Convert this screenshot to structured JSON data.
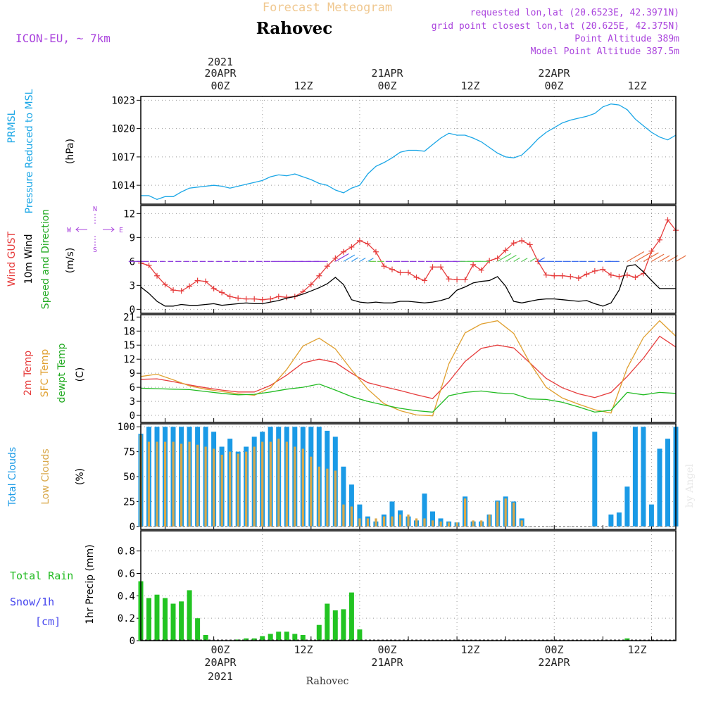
{
  "header": {
    "subtitle": "Forecast Meteogram",
    "location": "Rahovec",
    "model": "ICON-EU, ~ 7km",
    "requested": "requested lon,lat (20.6523E, 42.3971N)",
    "gridpoint": "grid point closest lon,lat (20.625E, 42.375N)",
    "point_alt": "Point Altitude 389m",
    "model_alt": "Model Point Altitude 387.5m",
    "footer_location": "Rahovec",
    "watermark": "by Angel"
  },
  "time_axis": {
    "top_year": "2021",
    "top_dates": [
      "20APR",
      "21APR",
      "22APR"
    ],
    "hour_labels": [
      "00Z",
      "12Z",
      "00Z",
      "12Z",
      "00Z",
      "12Z"
    ],
    "bottom_year": "2021",
    "bottom_dates": [
      "20APR",
      "21APR",
      "22APR"
    ]
  },
  "colors": {
    "pressure": "#1aa6e6",
    "gust": "#e63c3c",
    "wind": "#000000",
    "temp2m": "#e63c3c",
    "sfc": "#e0a030",
    "dewpt": "#22bb22",
    "total_clouds": "#1a9ae6",
    "low_clouds": "#d9a84a",
    "rain": "#22c422",
    "snow": "#4444ee",
    "purple": "#aa44dd"
  },
  "chart_data": [
    {
      "type": "line",
      "panel": "pressure",
      "ylabel_lines": [
        "PRMSL",
        "Pressure Reduced to MSL"
      ],
      "unit": "(hPa)",
      "yticks": [
        1014,
        1017,
        1020,
        1023
      ],
      "ylim": [
        1012,
        1023.4
      ],
      "xlim_hours": [
        -15,
        51
      ],
      "series": [
        {
          "name": "PRMSL",
          "x": [
            -15,
            -14,
            -13,
            -12,
            -11,
            -10,
            -9,
            -8,
            -7,
            -6,
            -5,
            -4,
            -3,
            -2,
            -1,
            0,
            1,
            2,
            3,
            4,
            5,
            6,
            7,
            8,
            9,
            10,
            11,
            12,
            13,
            14,
            15,
            16,
            17,
            18,
            19,
            20,
            21,
            22,
            23,
            24,
            25,
            26,
            27,
            28,
            29,
            30,
            31,
            32,
            33,
            34,
            35,
            36,
            37,
            38,
            39,
            40,
            41,
            42,
            43,
            44,
            45,
            46,
            47,
            48,
            49,
            50,
            51
          ],
          "y": [
            1012.9,
            1012.9,
            1012.5,
            1012.8,
            1012.8,
            1013.3,
            1013.7,
            1013.8,
            1013.9,
            1014.0,
            1013.9,
            1013.7,
            1013.9,
            1014.1,
            1014.3,
            1014.5,
            1014.9,
            1015.1,
            1015.0,
            1015.2,
            1014.9,
            1014.6,
            1014.2,
            1014.0,
            1013.5,
            1013.2,
            1013.7,
            1014.0,
            1015.2,
            1016.0,
            1016.4,
            1016.9,
            1017.5,
            1017.7,
            1017.7,
            1017.6,
            1018.3,
            1019.0,
            1019.5,
            1019.3,
            1019.3,
            1019.0,
            1018.6,
            1018.0,
            1017.4,
            1017.0,
            1016.9,
            1017.2,
            1018.0,
            1018.9,
            1019.6,
            1020.1,
            1020.6,
            1020.9,
            1021.1,
            1021.3,
            1021.6,
            1022.3,
            1022.6,
            1022.5,
            1022.0,
            1021.0,
            1020.3,
            1019.6,
            1019.1,
            1018.8,
            1019.3
          ]
        }
      ]
    },
    {
      "type": "line",
      "panel": "wind",
      "ylabel_lines": [
        "Wind GUST",
        "10m Wind",
        "Speed and Direction"
      ],
      "unit": "(m/s)",
      "compass": {
        "n": "N",
        "s": "S",
        "e": "E",
        "w": "W"
      },
      "yticks": [
        0,
        3,
        6,
        9,
        12
      ],
      "ylim": [
        -0.5,
        13
      ],
      "series": [
        {
          "name": "Wind GUST",
          "x": [
            -15,
            -14,
            -13,
            -12,
            -11,
            -10,
            -9,
            -8,
            -7,
            -6,
            -5,
            -4,
            -3,
            -2,
            -1,
            0,
            1,
            2,
            3,
            4,
            5,
            6,
            7,
            8,
            9,
            10,
            11,
            12,
            13,
            14,
            15,
            16,
            17,
            18,
            19,
            20,
            21,
            22,
            23,
            24,
            25,
            26,
            27,
            28,
            29,
            30,
            31,
            32,
            33,
            34,
            35,
            36,
            37,
            38,
            39,
            40,
            41,
            42,
            43,
            44,
            45,
            46,
            47,
            48,
            49,
            50,
            51
          ],
          "y": [
            5.8,
            5.5,
            4.2,
            3.1,
            2.4,
            2.3,
            2.9,
            3.6,
            3.5,
            2.6,
            2.1,
            1.6,
            1.4,
            1.3,
            1.3,
            1.2,
            1.3,
            1.6,
            1.5,
            1.6,
            2.2,
            3.1,
            4.2,
            5.4,
            6.4,
            7.2,
            7.8,
            8.6,
            8.2,
            7.2,
            5.4,
            5.0,
            4.6,
            4.6,
            4.0,
            3.6,
            5.3,
            5.3,
            3.8,
            3.7,
            3.7,
            5.6,
            4.9,
            6.1,
            6.4,
            7.4,
            8.3,
            8.6,
            8.1,
            6.0,
            4.3,
            4.2,
            4.2,
            4.1,
            3.9,
            4.4,
            4.8,
            5.0,
            4.3,
            4.1,
            4.3,
            4.0,
            4.5,
            7.3,
            8.7,
            11.2,
            9.9
          ]
        },
        {
          "name": "10m Wind",
          "x": [
            -15,
            -14,
            -13,
            -12,
            -11,
            -10,
            -9,
            -8,
            -7,
            -6,
            -5,
            -4,
            -3,
            -2,
            -1,
            0,
            1,
            2,
            3,
            4,
            5,
            6,
            7,
            8,
            9,
            10,
            11,
            12,
            13,
            14,
            15,
            16,
            17,
            18,
            19,
            20,
            21,
            22,
            23,
            24,
            25,
            26,
            27,
            28,
            29,
            30,
            31,
            32,
            33,
            34,
            35,
            36,
            37,
            38,
            39,
            40,
            41,
            42,
            43,
            44,
            45,
            46,
            47,
            48,
            49,
            50,
            51
          ],
          "y": [
            2.8,
            2.0,
            1.0,
            0.4,
            0.4,
            0.6,
            0.5,
            0.5,
            0.6,
            0.7,
            0.5,
            0.6,
            0.7,
            0.8,
            0.7,
            0.7,
            0.9,
            1.1,
            1.4,
            1.6,
            1.9,
            2.3,
            2.7,
            3.2,
            4.0,
            3.1,
            1.2,
            0.9,
            0.8,
            0.9,
            0.8,
            0.8,
            1.0,
            1.0,
            0.9,
            0.8,
            0.9,
            1.1,
            1.4,
            2.4,
            2.8,
            3.3,
            3.5,
            3.6,
            4.1,
            2.9,
            1.0,
            0.8,
            1.0,
            1.2,
            1.3,
            1.3,
            1.2,
            1.1,
            1.0,
            1.1,
            0.7,
            0.4,
            0.8,
            2.4,
            5.4,
            5.6,
            4.7,
            3.6,
            2.6,
            2.6,
            2.6
          ]
        }
      ]
    },
    {
      "type": "line",
      "panel": "temperature",
      "ylabel_lines": [
        "2m Temp",
        "SFC Temp",
        "dewpt Temp"
      ],
      "unit": "(C)",
      "yticks": [
        0,
        3,
        6,
        9,
        12,
        15,
        18,
        21
      ],
      "ylim": [
        -1.5,
        21.5
      ],
      "series": [
        {
          "name": "2m Temp",
          "x": [
            -15,
            -13,
            -11,
            -9,
            -7,
            -5,
            -3,
            -1,
            1,
            3,
            5,
            7,
            9,
            11,
            13,
            15,
            17,
            19,
            21,
            23,
            25,
            27,
            29,
            31,
            33,
            35,
            37,
            39,
            41,
            43,
            45,
            47,
            49,
            51
          ],
          "y": [
            7.7,
            7.8,
            7.2,
            6.5,
            5.9,
            5.4,
            5.0,
            5.0,
            6.4,
            8.6,
            11.2,
            12.0,
            11.3,
            9.0,
            7.0,
            6.1,
            5.3,
            4.4,
            3.6,
            7.2,
            11.5,
            14.3,
            15.0,
            14.4,
            11.2,
            7.9,
            5.9,
            4.6,
            3.8,
            4.9,
            8.3,
            12.2,
            16.9,
            14.6
          ]
        },
        {
          "name": "SFC Temp",
          "x": [
            -15,
            -13,
            -11,
            -9,
            -7,
            -5,
            -3,
            -1,
            1,
            3,
            5,
            7,
            9,
            11,
            13,
            15,
            17,
            19,
            21,
            23,
            25,
            27,
            29,
            31,
            33,
            35,
            37,
            39,
            41,
            43,
            45,
            47,
            49,
            51
          ],
          "y": [
            8.3,
            8.8,
            7.6,
            6.3,
            5.6,
            5.1,
            4.6,
            4.3,
            5.9,
            9.8,
            14.8,
            16.5,
            14.2,
            9.7,
            5.6,
            2.5,
            1.0,
            0.1,
            -0.1,
            11.0,
            17.6,
            19.5,
            20.2,
            17.5,
            11.2,
            6.0,
            3.7,
            2.4,
            1.2,
            0.5,
            10.1,
            16.6,
            20.2,
            16.9
          ]
        },
        {
          "name": "dewpt Temp",
          "x": [
            -15,
            -13,
            -11,
            -9,
            -7,
            -5,
            -3,
            -1,
            1,
            3,
            5,
            7,
            9,
            11,
            13,
            15,
            17,
            19,
            21,
            23,
            25,
            27,
            29,
            31,
            33,
            35,
            37,
            39,
            41,
            43,
            45,
            47,
            49,
            51
          ],
          "y": [
            5.8,
            5.7,
            5.6,
            5.5,
            5.1,
            4.7,
            4.4,
            4.5,
            5.0,
            5.6,
            6.0,
            6.7,
            5.4,
            4.0,
            3.0,
            2.2,
            1.5,
            1.0,
            0.7,
            4.2,
            4.9,
            5.2,
            4.8,
            4.6,
            3.5,
            3.4,
            2.8,
            1.8,
            0.7,
            1.1,
            4.9,
            4.4,
            4.9,
            4.7
          ]
        }
      ]
    },
    {
      "type": "bar",
      "panel": "clouds",
      "ylabel_lines": [
        "Total Clouds",
        "Low Clouds"
      ],
      "unit": "(%)",
      "yticks": [
        0,
        25,
        50,
        75,
        100
      ],
      "ylim": [
        -3,
        103
      ],
      "x_hours": [
        -15,
        -14,
        -13,
        -12,
        -11,
        -10,
        -9,
        -8,
        -7,
        -6,
        -5,
        -4,
        -3,
        -2,
        -1,
        0,
        1,
        2,
        3,
        4,
        5,
        6,
        7,
        8,
        9,
        10,
        11,
        12,
        13,
        14,
        15,
        16,
        17,
        18,
        19,
        20,
        21,
        22,
        23,
        24,
        25,
        26,
        27,
        28,
        29,
        30,
        31,
        32,
        33,
        34,
        35,
        36,
        37,
        38,
        39,
        40,
        41,
        42,
        43,
        44,
        45,
        46,
        47,
        48,
        49,
        50,
        51
      ],
      "series": [
        {
          "name": "Total Clouds",
          "values": [
            93,
            100,
            100,
            100,
            100,
            100,
            100,
            100,
            100,
            95,
            80,
            88,
            75,
            80,
            90,
            95,
            100,
            100,
            100,
            100,
            100,
            100,
            100,
            96,
            90,
            60,
            42,
            22,
            10,
            5,
            12,
            25,
            16,
            10,
            6,
            33,
            15,
            8,
            5,
            4,
            30,
            5,
            5,
            12,
            26,
            30,
            25,
            8,
            0,
            0,
            0,
            0,
            0,
            0,
            0,
            0,
            95,
            0,
            12,
            14,
            40,
            100,
            100,
            22,
            78,
            88,
            100
          ]
        },
        {
          "name": "Low Clouds",
          "values": [
            92,
            85,
            85,
            85,
            85,
            83,
            85,
            82,
            80,
            78,
            72,
            75,
            73,
            75,
            80,
            85,
            85,
            88,
            85,
            80,
            78,
            70,
            60,
            58,
            56,
            22,
            20,
            8,
            8,
            8,
            10,
            10,
            12,
            12,
            8,
            8,
            6,
            5,
            4,
            4,
            28,
            6,
            6,
            12,
            25,
            28,
            24,
            6,
            0,
            0,
            0,
            0,
            0,
            0,
            0,
            0,
            0,
            0,
            0,
            0,
            0,
            0,
            0,
            0,
            0,
            0,
            0
          ]
        }
      ]
    },
    {
      "type": "bar",
      "panel": "precip",
      "ylabel_lines": [
        "Total Rain",
        "Snow/1h",
        "[cm]"
      ],
      "unit": "1hr Precip (mm)",
      "yticks": [
        0,
        0.2,
        0.4,
        0.6,
        0.8
      ],
      "ylim": [
        0,
        0.98
      ],
      "x_hours": [
        -15,
        -14,
        -13,
        -12,
        -11,
        -10,
        -9,
        -8,
        -7,
        -6,
        -5,
        -4,
        -3,
        -2,
        -1,
        0,
        1,
        2,
        3,
        4,
        5,
        6,
        7,
        8,
        9,
        10,
        11,
        12,
        13,
        14,
        15,
        16,
        17,
        18,
        19,
        20,
        21,
        22,
        23,
        24,
        25,
        26,
        27,
        28,
        29,
        30,
        31,
        32,
        33,
        34,
        35,
        36,
        37,
        38,
        39,
        40,
        41,
        42,
        43,
        44,
        45,
        46,
        47,
        48,
        49,
        50,
        51
      ],
      "series": [
        {
          "name": "Total Rain",
          "values": [
            0.53,
            0.38,
            0.41,
            0.38,
            0.33,
            0.35,
            0.45,
            0.2,
            0.05,
            0,
            0,
            0,
            0.01,
            0.02,
            0.02,
            0.04,
            0.06,
            0.08,
            0.08,
            0.06,
            0.05,
            0,
            0.14,
            0.33,
            0.27,
            0.28,
            0.43,
            0.1,
            0,
            0,
            0,
            0,
            0,
            0,
            0,
            0,
            0,
            0,
            0,
            0,
            0,
            0,
            0,
            0,
            0,
            0,
            0,
            0,
            0,
            0,
            0,
            0,
            0,
            0,
            0,
            0,
            0,
            0,
            0,
            0,
            0.02,
            0,
            0,
            0,
            0,
            0,
            0
          ]
        }
      ]
    }
  ]
}
